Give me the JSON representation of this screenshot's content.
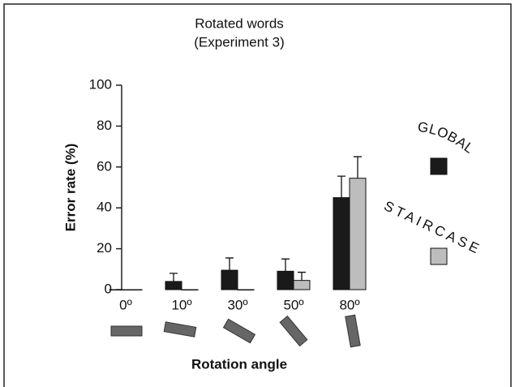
{
  "chart_data": {
    "type": "bar",
    "title": "Rotated words",
    "subtitle": "(Experiment 3)",
    "x_label": "Rotation angle",
    "y_label": "Error rate (%)",
    "categories": [
      "0º",
      "10º",
      "30º",
      "50º",
      "80º"
    ],
    "series": [
      {
        "name": "GLOBAL",
        "color": "#1a1a1a",
        "values": [
          0,
          4,
          9.5,
          9,
          45
        ],
        "errors": [
          0,
          4,
          6,
          6,
          10.5
        ]
      },
      {
        "name": "STAIRCASE",
        "color": "#bdbdbd",
        "values": [
          0,
          0,
          0,
          4.5,
          54.5
        ],
        "errors": [
          0,
          0,
          0,
          4,
          10.5
        ]
      }
    ],
    "ylim": [
      0,
      100
    ],
    "yticks": [
      0,
      20,
      40,
      60,
      80,
      100
    ]
  }
}
